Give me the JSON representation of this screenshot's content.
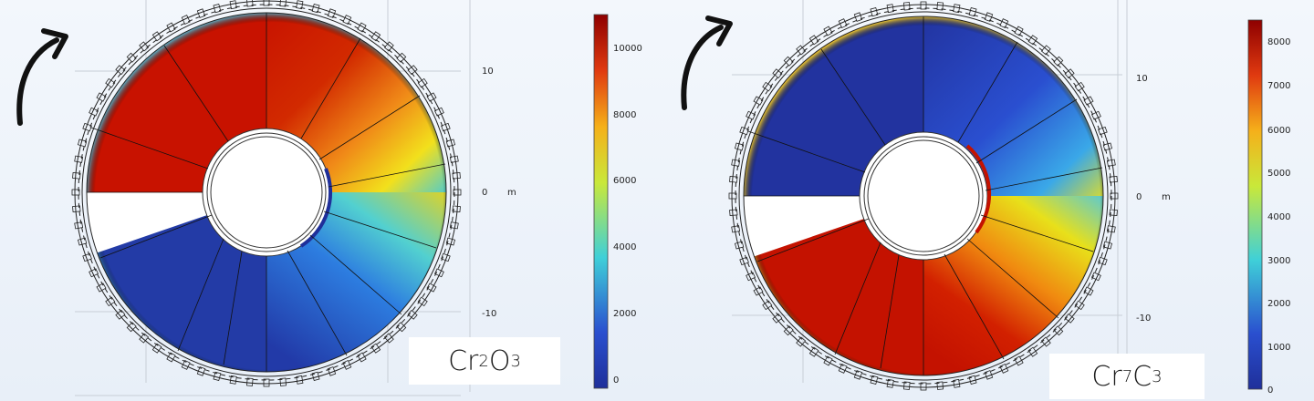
{
  "panels": [
    {
      "id": "left",
      "material": {
        "base": "Cr",
        "n1": "2",
        "el2": "O",
        "n2": "3"
      },
      "axis": {
        "ticks": [
          "10",
          "0",
          "-10"
        ],
        "unit": "m"
      },
      "colorbar": {
        "min": 0,
        "max": 11000,
        "ticks": [
          "10000",
          "8000",
          "6000",
          "4000",
          "2000",
          "0"
        ]
      },
      "hot_region": "upper-left"
    },
    {
      "id": "right",
      "material": {
        "base": "Cr",
        "n1": "7",
        "el2": "C",
        "n2": "3"
      },
      "axis": {
        "ticks": [
          "10",
          "0",
          "-10"
        ],
        "unit": "m"
      },
      "colorbar": {
        "min": 0,
        "max": 8500,
        "ticks": [
          "8000",
          "7000",
          "6000",
          "5000",
          "4000",
          "3000",
          "2000",
          "1000",
          "0"
        ]
      },
      "hot_region": "lower"
    }
  ],
  "colors": {
    "dark_red": "#9e0000",
    "red": "#c81200",
    "orange": "#f07a10",
    "yellow": "#f5e21a",
    "cyan": "#3fd0d8",
    "blue": "#2a4fcf",
    "dark_blue": "#1f2f9a"
  }
}
